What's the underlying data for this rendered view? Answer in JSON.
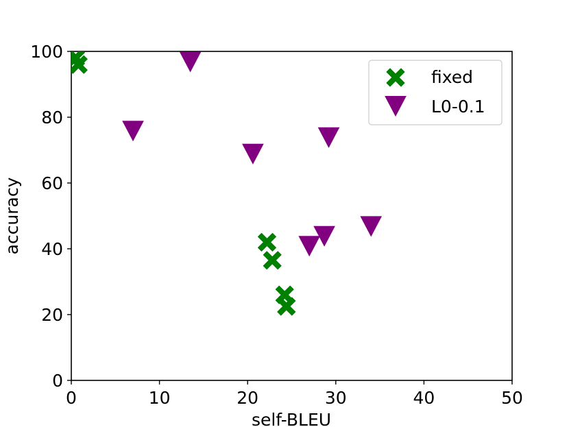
{
  "chart_data": {
    "type": "scatter",
    "title": "",
    "xlabel": "self-BLEU",
    "ylabel": "accuracy",
    "xlim": [
      0,
      50
    ],
    "ylim": [
      0,
      100
    ],
    "xticks": [
      0,
      10,
      20,
      30,
      40,
      50
    ],
    "yticks": [
      0,
      20,
      40,
      60,
      80,
      100
    ],
    "xtick_labels": [
      "0",
      "10",
      "20",
      "30",
      "40",
      "50"
    ],
    "ytick_labels": [
      "0",
      "20",
      "40",
      "60",
      "80",
      "100"
    ],
    "grid": false,
    "legend_position": "top-right",
    "series": [
      {
        "name": "fixed",
        "marker": "X",
        "color": "#008000",
        "points": [
          {
            "x": 0.5,
            "y": 98
          },
          {
            "x": 0.8,
            "y": 96
          },
          {
            "x": 22.2,
            "y": 42
          },
          {
            "x": 22.8,
            "y": 36.5
          },
          {
            "x": 24.2,
            "y": 26
          },
          {
            "x": 24.4,
            "y": 22.5
          }
        ]
      },
      {
        "name": "L0-0.1",
        "marker": "triangle-down",
        "color": "#800080",
        "points": [
          {
            "x": 13.5,
            "y": 97
          },
          {
            "x": 7.0,
            "y": 76
          },
          {
            "x": 20.6,
            "y": 69
          },
          {
            "x": 29.2,
            "y": 74
          },
          {
            "x": 27.0,
            "y": 41
          },
          {
            "x": 28.7,
            "y": 44
          },
          {
            "x": 34.0,
            "y": 47
          }
        ]
      }
    ]
  }
}
